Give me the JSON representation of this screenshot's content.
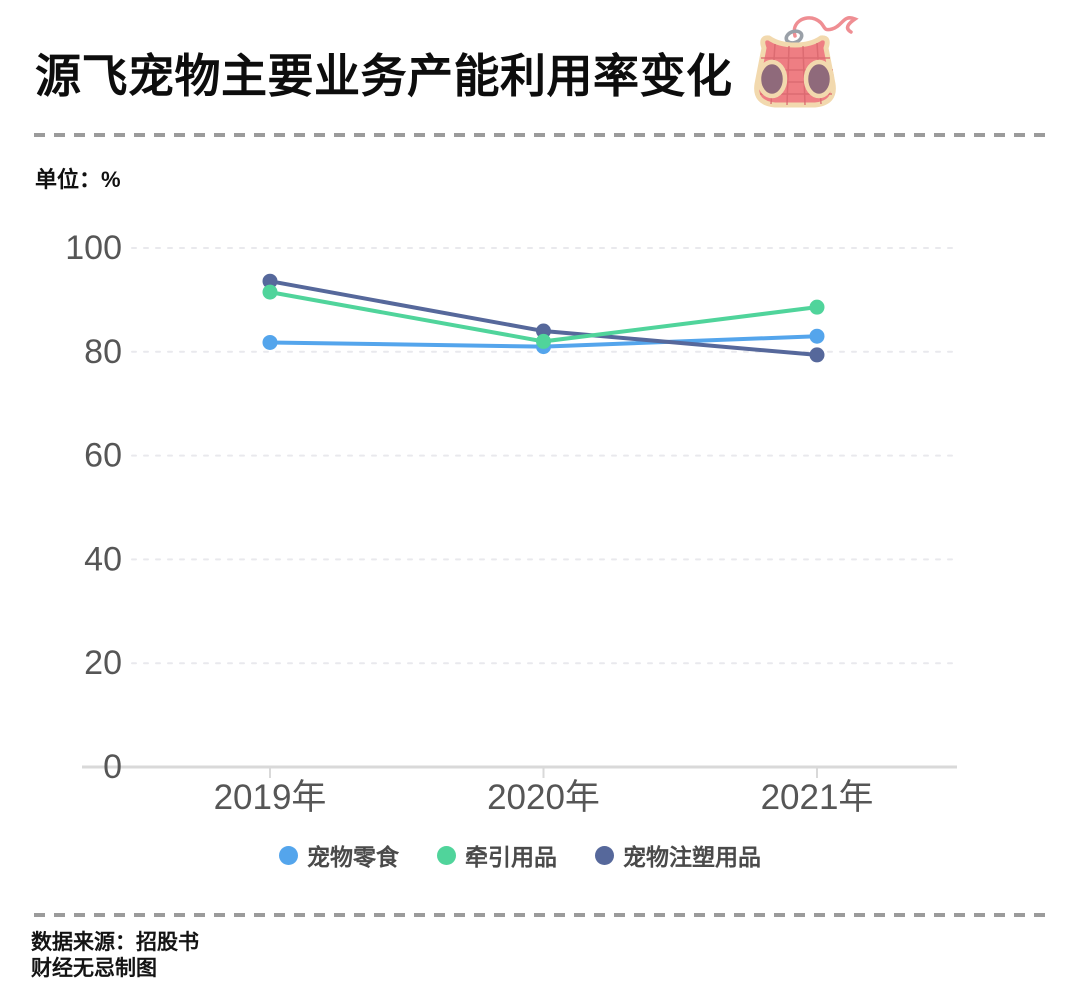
{
  "header": {
    "title": "源飞宠物主要业务产能利用率变化",
    "title_icon": "pet-harness-icon",
    "unit_label": "单位：%"
  },
  "chart_data": {
    "type": "line",
    "title": "源飞宠物主要业务产能利用率变化",
    "unit": "%",
    "categories": [
      "2019年",
      "2020年",
      "2021年"
    ],
    "series": [
      {
        "name": "宠物零食",
        "color": "#54a5ec",
        "values": [
          81.8,
          81.0,
          83.0
        ]
      },
      {
        "name": "牵引用品",
        "color": "#50d49b",
        "values": [
          91.5,
          82.0,
          88.6
        ]
      },
      {
        "name": "宠物注塑用品",
        "color": "#56689b",
        "values": [
          93.6,
          84.0,
          79.4
        ]
      }
    ],
    "xlabel": "",
    "ylabel": "%",
    "ylim": [
      0,
      100
    ],
    "yticks": [
      0,
      20,
      40,
      60,
      80,
      100
    ],
    "grid": true,
    "legend_position": "bottom",
    "draw_order": [
      0,
      2,
      1
    ]
  },
  "footer": {
    "source": "数据来源：招股书",
    "credit": "财经无忌制图"
  },
  "colors": {
    "axis_line": "#d9d9d9",
    "grid_line": "#e9e9ed",
    "tick_label": "#565656",
    "separator": "#9b9b9b",
    "harness_body": "#ee7e83",
    "harness_trim": "#f2d9ae",
    "harness_hole": "#8f6a7b",
    "leash": "#ef8e93"
  }
}
